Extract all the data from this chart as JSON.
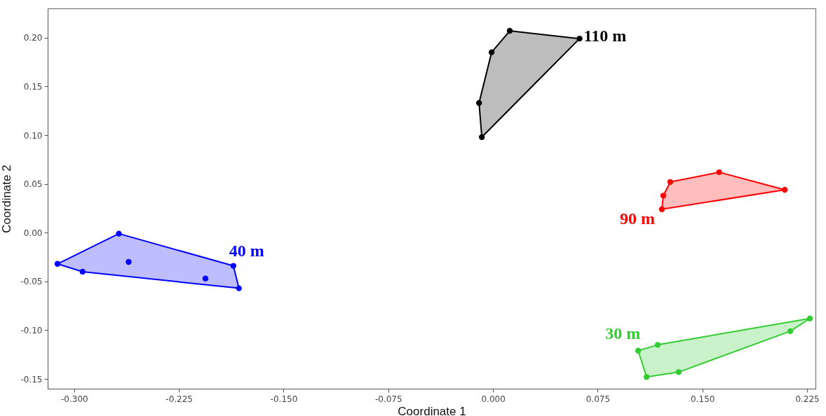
{
  "chart_data": {
    "type": "scatter",
    "xlabel": "Coordinate 1",
    "ylabel": "Coordinate 2",
    "marker": "circle",
    "xlim": [
      -0.319,
      0.231
    ],
    "ylim": [
      -0.16,
      0.23
    ],
    "xticks": [
      {
        "value": -0.3,
        "label": "-0.300"
      },
      {
        "value": -0.225,
        "label": "-0.225"
      },
      {
        "value": -0.15,
        "label": "-0.150"
      },
      {
        "value": -0.075,
        "label": "-0.075"
      },
      {
        "value": 0,
        "label": "0.000"
      },
      {
        "value": 0.075,
        "label": "0.075"
      },
      {
        "value": 0.15,
        "label": "0.150"
      },
      {
        "value": 0.225,
        "label": "0.225"
      }
    ],
    "yticks": [
      {
        "value": -0.15,
        "label": "-0.15"
      },
      {
        "value": -0.1,
        "label": "-0.10"
      },
      {
        "value": -0.05,
        "label": "-0.05"
      },
      {
        "value": 0,
        "label": "0.00"
      },
      {
        "value": 0.05,
        "label": "0.05"
      },
      {
        "value": 0.1,
        "label": "0.10"
      },
      {
        "value": 0.15,
        "label": "0.15"
      },
      {
        "value": 0.2,
        "label": "0.20"
      }
    ],
    "series": [
      {
        "name": "30 m",
        "color": "#33cc33",
        "x": [
          0.227,
          0.213,
          0.118,
          0.104,
          0.11,
          0.133
        ],
        "values": [
          -0.088,
          -0.101,
          -0.115,
          -0.121,
          -0.148,
          -0.143
        ]
      },
      {
        "name": "40 m",
        "color": "#0000ff",
        "x": [
          -0.312,
          -0.268,
          -0.294,
          -0.261,
          -0.206,
          -0.186,
          -0.182
        ],
        "values": [
          -0.032,
          -0.001,
          -0.04,
          -0.03,
          -0.047,
          -0.034,
          -0.057
        ]
      },
      {
        "name": "90 m",
        "color": "#ff0000",
        "x": [
          0.127,
          0.162,
          0.209,
          0.122,
          0.121
        ],
        "values": [
          0.052,
          0.062,
          0.044,
          0.038,
          0.024
        ]
      },
      {
        "name": "110 m",
        "color": "#000000",
        "x": [
          0.012,
          0.062,
          -0.001,
          -0.01,
          -0.008
        ],
        "values": [
          0.207,
          0.199,
          0.185,
          0.133,
          0.098
        ]
      }
    ]
  }
}
